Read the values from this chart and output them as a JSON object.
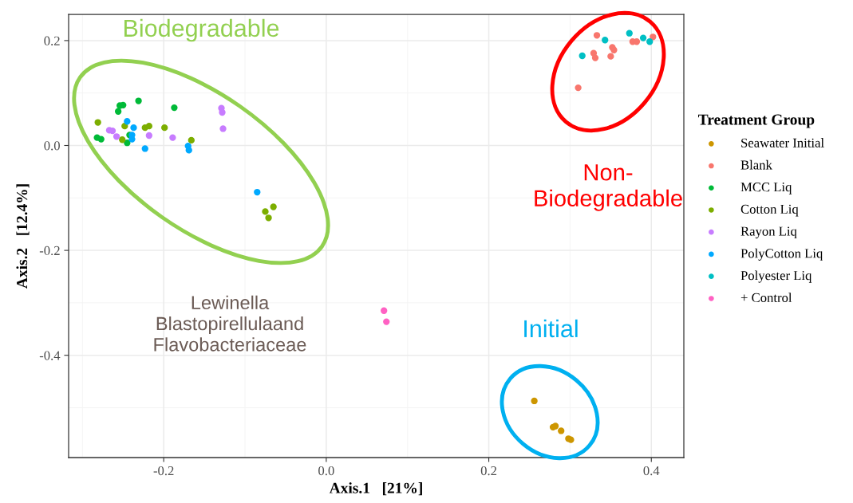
{
  "chart_data": {
    "type": "scatter",
    "xlabel": "Axis.1   [21%]",
    "ylabel": "Axis.2   [12.4%]",
    "legend_title": "Treatment Group",
    "xlim": [
      -0.317,
      0.44
    ],
    "ylim": [
      -0.595,
      0.25
    ],
    "xticks": [
      -0.2,
      {
        "value": 0,
        "label": "0.0"
      },
      0.2,
      0.4
    ],
    "yticks": [
      -0.4,
      -0.2,
      {
        "value": 0,
        "label": "0.0"
      },
      0.2
    ],
    "grid": true,
    "legend": "right",
    "marker": "circle",
    "series": [
      {
        "name": "Seawater Initial",
        "color": "#cd9600",
        "x": [
          0.256,
          0.279,
          0.282,
          0.289,
          0.298,
          0.301
        ],
        "values": [
          -0.487,
          -0.537,
          -0.535,
          -0.544,
          -0.559,
          -0.561
        ]
      },
      {
        "name": "Blank",
        "color": "#f8766d",
        "x": [
          0.333,
          0.329,
          0.331,
          0.352,
          0.354,
          0.35,
          0.377,
          0.382,
          0.402,
          0.31
        ],
        "values": [
          0.21,
          0.176,
          0.167,
          0.187,
          0.182,
          0.17,
          0.198,
          0.198,
          0.207,
          0.11
        ]
      },
      {
        "name": "MCC Liq",
        "color": "#00ba38",
        "x": [
          -0.254,
          -0.25,
          -0.256,
          -0.231,
          -0.187,
          -0.282,
          -0.277,
          -0.245,
          -0.242
        ],
        "values": [
          0.076,
          0.077,
          0.065,
          0.085,
          0.072,
          0.015,
          0.012,
          0.005,
          0.02
        ]
      },
      {
        "name": "Cotton Liq",
        "color": "#7cae00",
        "x": [
          -0.281,
          -0.248,
          -0.223,
          -0.218,
          -0.199,
          -0.166,
          -0.251,
          -0.075,
          -0.071,
          -0.065
        ],
        "values": [
          0.044,
          0.037,
          0.034,
          0.037,
          0.034,
          0.01,
          0.011,
          -0.126,
          -0.138,
          -0.117
        ]
      },
      {
        "name": "Rayon Liq",
        "color": "#c77cff",
        "x": [
          -0.267,
          -0.263,
          -0.258,
          -0.218,
          -0.189,
          -0.129,
          -0.128,
          -0.127
        ],
        "values": [
          0.029,
          0.028,
          0.017,
          0.019,
          0.015,
          0.071,
          0.063,
          0.032
        ]
      },
      {
        "name": "PolyCotton Liq",
        "color": "#00a9ff",
        "x": [
          -0.245,
          -0.237,
          -0.239,
          -0.239,
          -0.223,
          -0.17,
          -0.169,
          -0.085
        ],
        "values": [
          0.046,
          0.034,
          0.02,
          0.012,
          -0.006,
          -0.001,
          -0.009,
          -0.089
        ]
      },
      {
        "name": "Polyester Liq",
        "color": "#00bfc4",
        "x": [
          0.315,
          0.343,
          0.373,
          0.39,
          0.398
        ],
        "values": [
          0.171,
          0.201,
          0.214,
          0.205,
          0.198
        ]
      },
      {
        "name": "+ Control",
        "color": "#ff61c3",
        "x": [
          0.071,
          0.074
        ],
        "values": [
          -0.315,
          -0.336
        ]
      }
    ],
    "annotations": [
      "Biodegradable",
      "Non-\nBiodegradable",
      "Initial",
      "Lewinella\nBlastopirellulaand\nFlavobacteriaceae"
    ]
  }
}
